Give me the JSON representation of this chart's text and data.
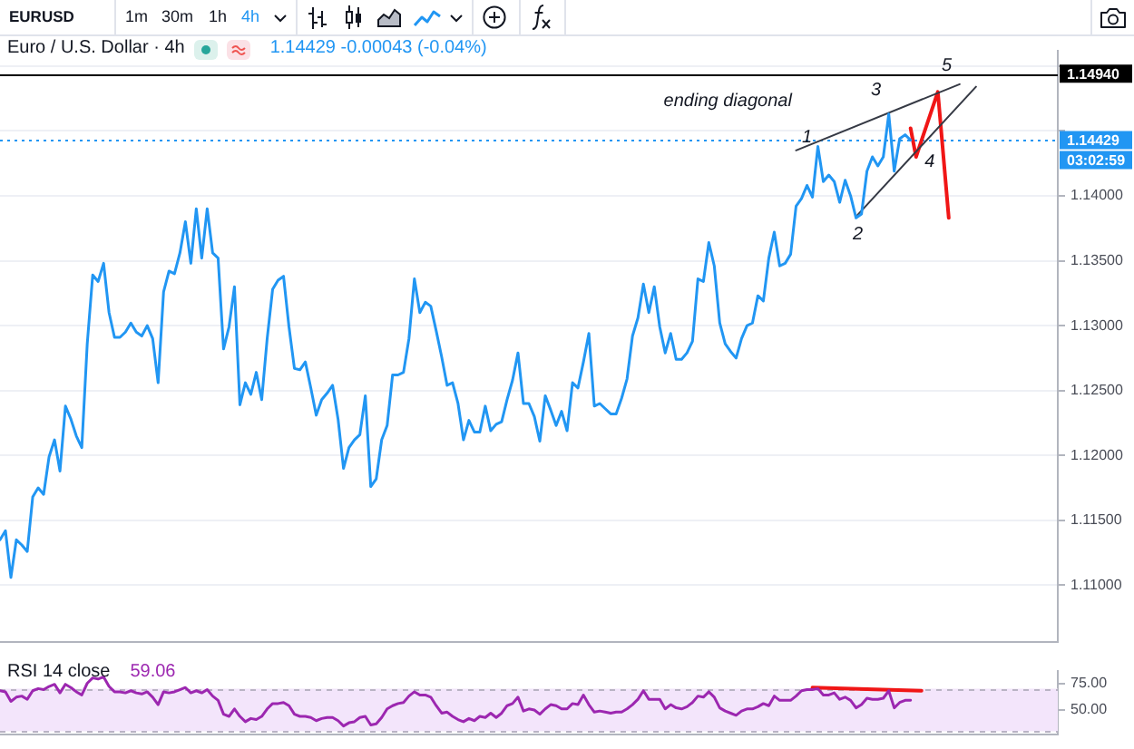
{
  "chart_data": [
    {
      "type": "other",
      "title": "EURUSD",
      "annotations": [
        "1m",
        "30m",
        "1h",
        "4h"
      ]
    },
    {
      "type": "line",
      "title": "Euro / U.S. Dollar · 4h",
      "subtitle": "1.14429 -0.00043 (-0.04%)",
      "categories": [
        null,
        null,
        null,
        null,
        null,
        null,
        null,
        null,
        null,
        null,
        null,
        null,
        null,
        null,
        null,
        null,
        null,
        null,
        null,
        null,
        null,
        null,
        null,
        null,
        null,
        null,
        null,
        null,
        null,
        null,
        null,
        null,
        null,
        null,
        null,
        null,
        null,
        null,
        null,
        null,
        null,
        null,
        null,
        null,
        null,
        null,
        null,
        null,
        null,
        null,
        null,
        null,
        null,
        null,
        null,
        null,
        null,
        null,
        null,
        null,
        null,
        null,
        null,
        null,
        null,
        null,
        null,
        null,
        null,
        null,
        null,
        null,
        null,
        null,
        null,
        null,
        null,
        null,
        null,
        null,
        null,
        null,
        null,
        null,
        null,
        null,
        null,
        null,
        null,
        null,
        null,
        null,
        null,
        null,
        null,
        null,
        null,
        null,
        null,
        null,
        null,
        null,
        null,
        null,
        null,
        null,
        null,
        null,
        null,
        null,
        null,
        null,
        null,
        null,
        null,
        null,
        null,
        null,
        null,
        null,
        null,
        null,
        null,
        null,
        null,
        null,
        null,
        null,
        null,
        null,
        null,
        null,
        null,
        null,
        null,
        null,
        null,
        null,
        null,
        null,
        null,
        null,
        null,
        null,
        null,
        null,
        null,
        null,
        null,
        null,
        null,
        null,
        null,
        null,
        null,
        null,
        null,
        null,
        null,
        null,
        null,
        null,
        null,
        null,
        null,
        null,
        null,
        null,
        null,
        null,
        null,
        null,
        null,
        null,
        null,
        null,
        null,
        null,
        null,
        null,
        null,
        null,
        null,
        null,
        null,
        null,
        null,
        null,
        null,
        null,
        null,
        null,
        null,
        null,
        null
      ],
      "series": [
        {
          "color": "#2196f3",
          "values": [
            1.1135,
            1.1142,
            1.1106,
            1.1135,
            1.1131,
            1.1126,
            1.1168,
            1.1175,
            1.117,
            1.1199,
            1.1212,
            1.1188,
            1.1238,
            1.1228,
            1.1215,
            1.1206,
            1.1286,
            1.1339,
            1.1334,
            1.1348,
            1.131,
            1.1291,
            1.1291,
            1.1295,
            1.1302,
            1.1295,
            1.1292,
            1.13,
            1.129,
            1.1256,
            1.1326,
            1.1342,
            1.134,
            1.1356,
            1.138,
            1.1348,
            1.139,
            1.1352,
            1.139,
            1.1356,
            1.1352,
            1.1282,
            1.1299,
            1.133,
            1.1239,
            1.1256,
            1.1247,
            1.1264,
            1.1243,
            1.129,
            1.1328,
            1.1335,
            1.1338,
            1.1299,
            1.1267,
            1.1266,
            1.1272,
            1.1252,
            1.1231,
            1.1243,
            1.1248,
            1.1254,
            1.1228,
            1.119,
            1.1206,
            1.1212,
            1.1216,
            1.1246,
            1.1176,
            1.1182,
            1.1212,
            1.1223,
            1.1262,
            1.1262,
            1.1264,
            1.129,
            1.1336,
            1.131,
            1.1318,
            1.1315,
            1.1296,
            1.1276,
            1.1254,
            1.1256,
            1.124,
            1.1212,
            1.1227,
            1.1218,
            1.1218,
            1.1238,
            1.1219,
            1.1224,
            1.1226,
            1.1243,
            1.1258,
            1.1279,
            1.124,
            1.124,
            1.123,
            1.1211,
            1.1246,
            1.1235,
            1.1223,
            1.1234,
            1.1219,
            1.1256,
            1.1252,
            1.1272,
            1.1294,
            1.1238,
            1.124,
            1.1236,
            1.1232,
            1.1232,
            1.1244,
            1.1259,
            1.1292,
            1.1306,
            1.1332,
            1.131,
            1.133,
            1.1299,
            1.1279,
            1.1294,
            1.1274,
            1.1274,
            1.1279,
            1.1288,
            1.1336,
            1.1334,
            1.1364,
            1.1346,
            1.1302,
            1.1286,
            1.128,
            1.1275,
            1.129,
            1.13,
            1.1302,
            1.1323,
            1.1319,
            1.1352,
            1.1372,
            1.1346,
            1.1348,
            1.1355,
            1.1392,
            1.1398,
            1.1408,
            1.1399,
            1.1438,
            1.1411,
            1.1416,
            1.1411,
            1.1395,
            1.1412,
            1.14,
            1.1383,
            1.1386,
            1.1419,
            1.143,
            1.1423,
            1.143,
            1.1463,
            1.1419,
            1.1444,
            1.1447,
            1.14429,
            null,
            null,
            null,
            null,
            null,
            null,
            null,
            null,
            null,
            null,
            null,
            null,
            null,
            null,
            null,
            null,
            null,
            null,
            null,
            null,
            null,
            null,
            null,
            null,
            null,
            null,
            null
          ]
        },
        {
          "color": "#363a45",
          "values": [
            null,
            null,
            null,
            null,
            null,
            null,
            null,
            null,
            null,
            null,
            null,
            null,
            null,
            null,
            null,
            null,
            null,
            null,
            null,
            null,
            null,
            null,
            null,
            null,
            null,
            null,
            null,
            null,
            null,
            null,
            null,
            null,
            null,
            null,
            null,
            null,
            null,
            null,
            null,
            null,
            null,
            null,
            null,
            null,
            null,
            null,
            null,
            null,
            null,
            null,
            null,
            null,
            null,
            null,
            null,
            null,
            null,
            null,
            null,
            null,
            null,
            null,
            null,
            null,
            null,
            null,
            null,
            null,
            null,
            null,
            null,
            null,
            null,
            null,
            null,
            null,
            null,
            null,
            null,
            null,
            null,
            null,
            null,
            null,
            null,
            null,
            null,
            null,
            null,
            null,
            null,
            null,
            null,
            null,
            null,
            null,
            null,
            null,
            null,
            null,
            null,
            null,
            null,
            null,
            null,
            null,
            null,
            null,
            null,
            null,
            null,
            null,
            null,
            null,
            null,
            null,
            null,
            null,
            null,
            null,
            null,
            null,
            null,
            null,
            null,
            null,
            null,
            null,
            null,
            null,
            null,
            null,
            null,
            null,
            null,
            null,
            null,
            null,
            null,
            null,
            null,
            null,
            null,
            null,
            null,
            null,
            1.1435,
            null,
            null,
            null,
            null,
            null,
            null,
            null,
            null,
            null,
            null,
            null,
            null,
            null,
            null,
            null,
            null,
            null,
            null,
            null,
            null,
            null,
            null,
            null,
            null,
            null,
            null,
            null,
            null,
            null,
            1.1486,
            null,
            null,
            null,
            null,
            null,
            null,
            null,
            null,
            null,
            null,
            null,
            null,
            null,
            null,
            null,
            null,
            null,
            null
          ]
        },
        {
          "color": "#363a45",
          "values": [
            null,
            null,
            null,
            null,
            null,
            null,
            null,
            null,
            null,
            null,
            null,
            null,
            null,
            null,
            null,
            null,
            null,
            null,
            null,
            null,
            null,
            null,
            null,
            null,
            null,
            null,
            null,
            null,
            null,
            null,
            null,
            null,
            null,
            null,
            null,
            null,
            null,
            null,
            null,
            null,
            null,
            null,
            null,
            null,
            null,
            null,
            null,
            null,
            null,
            null,
            null,
            null,
            null,
            null,
            null,
            null,
            null,
            null,
            null,
            null,
            null,
            null,
            null,
            null,
            null,
            null,
            null,
            null,
            null,
            null,
            null,
            null,
            null,
            null,
            null,
            null,
            null,
            null,
            null,
            null,
            null,
            null,
            null,
            null,
            null,
            null,
            null,
            null,
            null,
            null,
            null,
            null,
            null,
            null,
            null,
            null,
            null,
            null,
            null,
            null,
            null,
            null,
            null,
            null,
            null,
            null,
            null,
            null,
            null,
            null,
            null,
            null,
            null,
            null,
            null,
            null,
            null,
            null,
            null,
            null,
            null,
            null,
            null,
            null,
            null,
            null,
            null,
            null,
            null,
            null,
            null,
            null,
            null,
            null,
            null,
            null,
            null,
            null,
            null,
            null,
            null,
            null,
            null,
            null,
            null,
            null,
            null,
            null,
            null,
            null,
            null,
            null,
            null,
            null,
            null,
            null,
            null,
            1.1384,
            null,
            null,
            null,
            null,
            null,
            null,
            null,
            null,
            null,
            null,
            null,
            null,
            null,
            null,
            null,
            null,
            null,
            null,
            null,
            null,
            null,
            1.1484,
            null,
            null,
            null,
            null,
            null,
            null,
            null,
            null,
            null,
            null,
            null,
            null,
            null,
            null,
            null
          ]
        },
        {
          "color": "#f01616",
          "values": [
            null,
            null,
            null,
            null,
            null,
            null,
            null,
            null,
            null,
            null,
            null,
            null,
            null,
            null,
            null,
            null,
            null,
            null,
            null,
            null,
            null,
            null,
            null,
            null,
            null,
            null,
            null,
            null,
            null,
            null,
            null,
            null,
            null,
            null,
            null,
            null,
            null,
            null,
            null,
            null,
            null,
            null,
            null,
            null,
            null,
            null,
            null,
            null,
            null,
            null,
            null,
            null,
            null,
            null,
            null,
            null,
            null,
            null,
            null,
            null,
            null,
            null,
            null,
            null,
            null,
            null,
            null,
            null,
            null,
            null,
            null,
            null,
            null,
            null,
            null,
            null,
            null,
            null,
            null,
            null,
            null,
            null,
            null,
            null,
            null,
            null,
            null,
            null,
            null,
            null,
            null,
            null,
            null,
            null,
            null,
            null,
            null,
            null,
            null,
            null,
            null,
            null,
            null,
            null,
            null,
            null,
            null,
            null,
            null,
            null,
            null,
            null,
            null,
            null,
            null,
            null,
            null,
            null,
            null,
            null,
            null,
            null,
            null,
            null,
            null,
            null,
            null,
            null,
            null,
            null,
            null,
            null,
            null,
            null,
            null,
            null,
            null,
            null,
            null,
            null,
            null,
            null,
            null,
            null,
            null,
            null,
            null,
            null,
            null,
            null,
            null,
            null,
            null,
            null,
            null,
            null,
            null,
            null,
            null,
            null,
            null,
            null,
            null,
            null,
            null,
            null,
            null,
            1.1452,
            1.143,
            null,
            null,
            null,
            1.148,
            null,
            1.1383,
            null,
            null,
            null,
            null,
            null,
            null,
            null,
            null,
            null,
            null,
            null,
            null,
            null,
            null,
            null,
            null,
            null,
            null,
            null,
            null
          ]
        }
      ],
      "ylim": [
        1.1056,
        1.1512
      ],
      "yticks": [
        {
          "value": 1.11,
          "label": "1.11000"
        },
        {
          "value": 1.115,
          "label": "1.11500"
        },
        {
          "value": 1.12,
          "label": "1.12000"
        },
        {
          "value": 1.125,
          "label": "1.12500"
        },
        {
          "value": 1.13,
          "label": "1.13000"
        },
        {
          "value": 1.135,
          "label": "1.13500"
        },
        {
          "value": 1.14,
          "label": "1.14000"
        },
        {
          "value": 1.145,
          "label": null
        },
        {
          "value": 1.15,
          "label": null
        }
      ],
      "ref_lines": [
        {
          "axis": "y",
          "value": 1.1494,
          "label": "1.14940",
          "color": "#000000"
        },
        {
          "axis": "y",
          "value": 1.14429,
          "label": "1.14429",
          "color": "#2196f3",
          "line_style": "dotted"
        }
      ],
      "annotations": [
        "ending diagonal",
        "1",
        "2",
        "3",
        "4",
        "5",
        "03:02:59"
      ],
      "grid": "y"
    },
    {
      "type": "line",
      "title": "RSI 14 close",
      "subtitle": "59.06",
      "categories": [
        null,
        null,
        null,
        null,
        null,
        null,
        null,
        null,
        null,
        null,
        null,
        null,
        null,
        null,
        null,
        null,
        null,
        null,
        null,
        null,
        null,
        null,
        null,
        null,
        null,
        null,
        null,
        null,
        null,
        null,
        null,
        null,
        null,
        null,
        null,
        null,
        null,
        null,
        null,
        null,
        null,
        null,
        null,
        null,
        null,
        null,
        null,
        null,
        null,
        null,
        null,
        null,
        null,
        null,
        null,
        null,
        null,
        null,
        null,
        null,
        null,
        null,
        null,
        null,
        null,
        null,
        null,
        null,
        null,
        null,
        null,
        null,
        null,
        null,
        null,
        null,
        null,
        null,
        null,
        null,
        null,
        null,
        null,
        null,
        null,
        null,
        null,
        null,
        null,
        null,
        null,
        null,
        null,
        null,
        null,
        null,
        null,
        null,
        null,
        null,
        null,
        null,
        null,
        null,
        null,
        null,
        null,
        null,
        null,
        null,
        null,
        null,
        null,
        null,
        null,
        null,
        null,
        null,
        null,
        null,
        null,
        null,
        null,
        null,
        null,
        null,
        null,
        null,
        null,
        null,
        null,
        null,
        null,
        null,
        null,
        null,
        null,
        null,
        null,
        null,
        null,
        null,
        null,
        null,
        null,
        null,
        null,
        null,
        null,
        null,
        null,
        null,
        null,
        null,
        null,
        null,
        null,
        null,
        null,
        null,
        null,
        null,
        null,
        null,
        null,
        null,
        null,
        null,
        null,
        null,
        null,
        null,
        null,
        null,
        null,
        null,
        null,
        null,
        null,
        null,
        null,
        null,
        null,
        null,
        null,
        null,
        null,
        null,
        null,
        null,
        null,
        null,
        null,
        null,
        null
      ],
      "series": [
        {
          "color": "#9c27b0",
          "values": [
            68,
            67,
            58,
            62,
            63,
            60,
            68,
            70,
            69,
            72,
            74,
            66,
            74,
            71,
            67,
            64,
            75,
            80,
            79,
            81,
            72,
            67,
            67,
            66,
            68,
            66,
            65,
            67,
            62,
            55,
            67,
            66,
            67,
            69,
            71,
            66,
            68,
            66,
            69,
            63,
            59,
            46,
            44,
            51,
            44,
            39,
            42,
            41,
            44,
            51,
            56,
            56,
            57,
            54,
            46,
            44,
            44,
            43,
            40,
            42,
            43,
            43,
            40,
            35,
            38,
            39,
            43,
            44,
            36,
            37,
            43,
            51,
            54,
            56,
            57,
            63,
            67,
            64,
            64,
            62,
            54,
            47,
            48,
            44,
            41,
            39,
            42,
            40,
            44,
            43,
            47,
            43,
            47,
            54,
            56,
            62,
            49,
            51,
            50,
            46,
            51,
            55,
            54,
            51,
            51,
            56,
            55,
            64,
            55,
            48,
            49,
            48,
            47,
            48,
            48,
            51,
            55,
            60,
            68,
            60,
            60,
            60,
            51,
            55,
            52,
            51,
            53,
            57,
            63,
            62,
            67,
            62,
            52,
            49,
            47,
            45,
            49,
            51,
            51,
            53,
            56,
            54,
            63,
            59,
            59,
            59,
            63,
            68,
            69,
            69,
            70,
            64,
            64,
            66,
            60,
            62,
            59,
            52,
            55,
            61,
            60,
            60,
            61,
            68,
            52,
            57,
            59,
            59.06,
            null,
            null,
            null,
            null,
            null,
            null,
            null,
            null,
            null,
            null,
            null,
            null,
            null,
            null,
            null,
            null,
            null,
            null,
            null,
            null,
            null,
            null,
            null,
            null,
            null,
            null,
            null
          ]
        },
        {
          "color": "#f01616",
          "values": [
            null,
            null,
            null,
            null,
            null,
            null,
            null,
            null,
            null,
            null,
            null,
            null,
            null,
            null,
            null,
            null,
            null,
            null,
            null,
            null,
            null,
            null,
            null,
            null,
            null,
            null,
            null,
            null,
            null,
            null,
            null,
            null,
            null,
            null,
            null,
            null,
            null,
            null,
            null,
            null,
            null,
            null,
            null,
            null,
            null,
            null,
            null,
            null,
            null,
            null,
            null,
            null,
            null,
            null,
            null,
            null,
            null,
            null,
            null,
            null,
            null,
            null,
            null,
            null,
            null,
            null,
            null,
            null,
            null,
            null,
            null,
            null,
            null,
            null,
            null,
            null,
            null,
            null,
            null,
            null,
            null,
            null,
            null,
            null,
            null,
            null,
            null,
            null,
            null,
            null,
            null,
            null,
            null,
            null,
            null,
            null,
            null,
            null,
            null,
            null,
            null,
            null,
            null,
            null,
            null,
            null,
            null,
            null,
            null,
            null,
            null,
            null,
            null,
            null,
            null,
            null,
            null,
            null,
            null,
            null,
            null,
            null,
            null,
            null,
            null,
            null,
            null,
            null,
            null,
            null,
            null,
            null,
            null,
            null,
            null,
            null,
            null,
            null,
            null,
            null,
            null,
            null,
            null,
            null,
            null,
            null,
            null,
            null,
            null,
            71,
            null,
            null,
            null,
            null,
            null,
            null,
            null,
            null,
            null,
            null,
            null,
            null,
            null,
            null,
            null,
            null,
            null,
            null,
            null,
            68,
            null,
            null,
            null,
            null,
            null,
            null,
            null,
            null,
            null,
            null,
            null,
            null,
            null,
            null,
            null,
            null,
            null,
            null,
            null,
            null,
            null,
            null,
            null,
            null,
            null
          ]
        }
      ],
      "ylim": [
        26.7,
        86.8
      ],
      "yticks": [
        {
          "value": 50,
          "label": "50.00"
        },
        {
          "value": 75,
          "label": "75.00"
        }
      ],
      "bands": [
        {
          "axis": "y",
          "from": 30,
          "to": 70,
          "color": "#f3e5fb"
        }
      ],
      "ref_lines": [
        {
          "axis": "y",
          "value": 70,
          "color": "#b9b3c4",
          "line_style": "dashed"
        },
        {
          "axis": "y",
          "value": 30,
          "color": "#b9b3c4",
          "line_style": "dashed"
        }
      ]
    }
  ]
}
